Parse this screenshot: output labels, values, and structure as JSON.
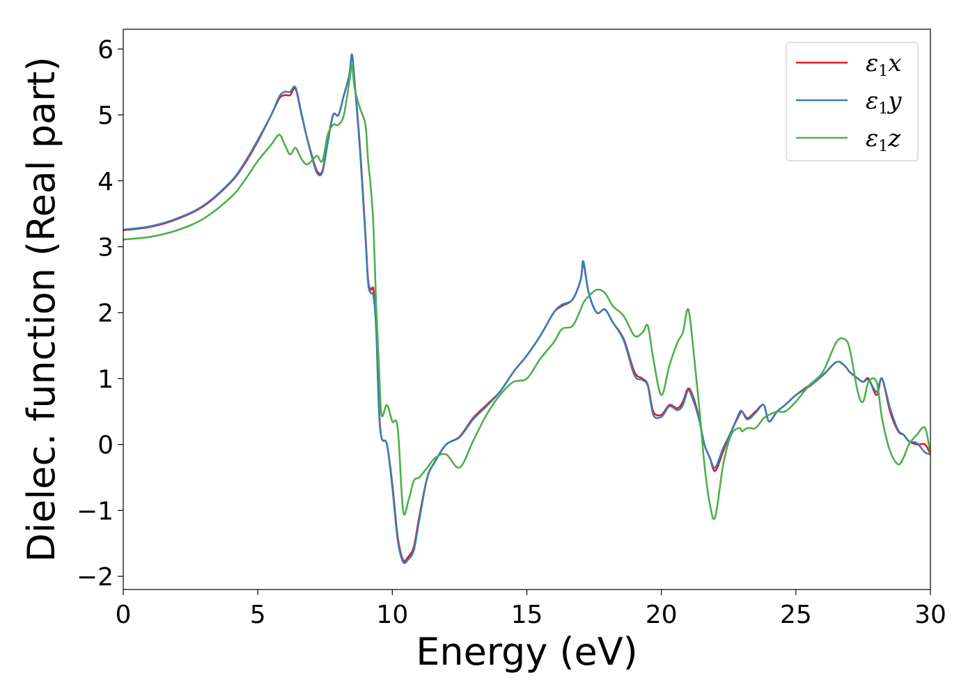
{
  "chart_data": {
    "type": "line",
    "title": "",
    "xlabel": "Energy (eV)",
    "ylabel": "Dielec. function (Real part)",
    "xlim": [
      0,
      30
    ],
    "ylim": [
      -2.2,
      6.3
    ],
    "xticks": [
      0,
      5,
      10,
      15,
      20,
      25,
      30
    ],
    "yticks": [
      -2,
      -1,
      0,
      1,
      2,
      3,
      4,
      5,
      6
    ],
    "grid": false,
    "legend_position": "top-right",
    "series": [
      {
        "name": "ε₁x",
        "legend_base": "ε",
        "legend_sub": "1",
        "legend_tail": "x",
        "color": "#e41a1c",
        "x": [
          0,
          1,
          2,
          3,
          4,
          4.5,
          5,
          5.5,
          5.8,
          6.0,
          6.2,
          6.4,
          6.6,
          6.8,
          7.0,
          7.2,
          7.4,
          7.6,
          7.8,
          8.0,
          8.2,
          8.4,
          8.5,
          8.6,
          8.8,
          9.0,
          9.1,
          9.2,
          9.3,
          9.4,
          9.5,
          9.6,
          9.8,
          10.0,
          10.2,
          10.4,
          10.6,
          10.8,
          11.0,
          11.3,
          11.6,
          12.0,
          12.5,
          13.0,
          13.5,
          14.0,
          14.5,
          15.0,
          15.5,
          16.0,
          16.3,
          16.7,
          17.0,
          17.1,
          17.3,
          17.6,
          17.9,
          18.2,
          18.6,
          19.0,
          19.3,
          19.5,
          19.7,
          20.0,
          20.3,
          20.6,
          20.8,
          21.0,
          21.2,
          21.4,
          21.6,
          21.8,
          22.0,
          22.3,
          22.6,
          22.9,
          23.0,
          23.2,
          23.5,
          23.8,
          24.0,
          24.3,
          24.6,
          25.0,
          25.5,
          26.0,
          26.5,
          26.8,
          27.0,
          27.3,
          27.5,
          27.7,
          28.0,
          28.2,
          28.5,
          28.8,
          29.0,
          29.2,
          29.5,
          29.8,
          30.0
        ],
        "values": [
          3.25,
          3.3,
          3.42,
          3.62,
          3.98,
          4.25,
          4.6,
          5.0,
          5.25,
          5.3,
          5.3,
          5.4,
          5.05,
          4.7,
          4.4,
          4.15,
          4.15,
          4.6,
          5.0,
          5.0,
          5.3,
          5.6,
          5.9,
          5.5,
          4.5,
          3.2,
          2.5,
          2.35,
          2.35,
          1.8,
          0.6,
          0.1,
          0.0,
          -0.6,
          -1.4,
          -1.75,
          -1.7,
          -1.55,
          -1.1,
          -0.5,
          -0.25,
          0.0,
          0.12,
          0.4,
          0.6,
          0.8,
          1.1,
          1.35,
          1.65,
          2.0,
          2.1,
          2.2,
          2.5,
          2.75,
          2.3,
          2.0,
          2.05,
          1.85,
          1.6,
          1.1,
          1.0,
          0.9,
          0.5,
          0.45,
          0.6,
          0.55,
          0.65,
          0.85,
          0.7,
          0.4,
          0.0,
          -0.2,
          -0.4,
          -0.1,
          0.2,
          0.45,
          0.5,
          0.4,
          0.5,
          0.6,
          0.35,
          0.5,
          0.6,
          0.75,
          0.9,
          1.05,
          1.25,
          1.2,
          1.1,
          1.0,
          0.95,
          1.0,
          0.75,
          1.0,
          0.5,
          0.2,
          0.15,
          0.05,
          0.0,
          0.0,
          -0.15
        ]
      },
      {
        "name": "ε₁y",
        "legend_base": "ε",
        "legend_sub": "1",
        "legend_tail": "y",
        "color": "#377eb8",
        "x": [
          0,
          1,
          2,
          3,
          4,
          4.5,
          5,
          5.5,
          5.8,
          6.0,
          6.2,
          6.4,
          6.6,
          6.8,
          7.0,
          7.2,
          7.4,
          7.6,
          7.8,
          8.0,
          8.2,
          8.4,
          8.5,
          8.6,
          8.8,
          9.0,
          9.1,
          9.2,
          9.3,
          9.4,
          9.5,
          9.6,
          9.8,
          10.0,
          10.2,
          10.4,
          10.6,
          10.8,
          11.0,
          11.3,
          11.6,
          12.0,
          12.5,
          13.0,
          13.5,
          14.0,
          14.5,
          15.0,
          15.5,
          16.0,
          16.3,
          16.7,
          17.0,
          17.1,
          17.3,
          17.6,
          17.9,
          18.2,
          18.6,
          19.0,
          19.3,
          19.5,
          19.7,
          20.0,
          20.3,
          20.6,
          20.8,
          21.0,
          21.2,
          21.4,
          21.6,
          21.8,
          22.0,
          22.3,
          22.6,
          22.9,
          23.0,
          23.2,
          23.5,
          23.8,
          24.0,
          24.3,
          24.6,
          25.0,
          25.5,
          26.0,
          26.5,
          26.8,
          27.0,
          27.3,
          27.5,
          27.7,
          28.0,
          28.2,
          28.5,
          28.8,
          29.0,
          29.2,
          29.5,
          29.8,
          30.0
        ],
        "values": [
          3.26,
          3.31,
          3.43,
          3.63,
          3.99,
          4.27,
          4.62,
          5.0,
          5.28,
          5.35,
          5.35,
          5.42,
          5.07,
          4.7,
          4.38,
          4.12,
          4.13,
          4.58,
          5.0,
          5.0,
          5.3,
          5.6,
          5.92,
          5.48,
          4.45,
          3.15,
          2.45,
          2.3,
          2.25,
          1.75,
          0.55,
          0.1,
          0.0,
          -0.65,
          -1.45,
          -1.78,
          -1.74,
          -1.6,
          -1.15,
          -0.5,
          -0.25,
          0.0,
          0.11,
          0.38,
          0.58,
          0.8,
          1.1,
          1.35,
          1.65,
          2.0,
          2.12,
          2.2,
          2.5,
          2.78,
          2.3,
          2.0,
          2.05,
          1.85,
          1.58,
          1.05,
          0.98,
          0.88,
          0.45,
          0.42,
          0.58,
          0.52,
          0.6,
          0.82,
          0.65,
          0.38,
          0.0,
          -0.2,
          -0.35,
          -0.05,
          0.2,
          0.48,
          0.5,
          0.38,
          0.48,
          0.6,
          0.35,
          0.5,
          0.6,
          0.75,
          0.88,
          1.05,
          1.25,
          1.2,
          1.1,
          1.0,
          0.95,
          0.98,
          0.8,
          1.0,
          0.55,
          0.22,
          0.15,
          0.05,
          0.02,
          -0.12,
          -0.15
        ]
      },
      {
        "name": "ε₁z",
        "legend_base": "ε",
        "legend_sub": "1",
        "legend_tail": "z",
        "color": "#4daf4a",
        "x": [
          0,
          1,
          2,
          3,
          4,
          4.5,
          5,
          5.5,
          5.8,
          6.0,
          6.2,
          6.4,
          6.6,
          6.8,
          7.0,
          7.2,
          7.4,
          7.6,
          7.8,
          8.0,
          8.2,
          8.4,
          8.5,
          8.6,
          8.8,
          9.0,
          9.1,
          9.2,
          9.3,
          9.4,
          9.5,
          9.6,
          9.8,
          10.0,
          10.2,
          10.4,
          10.6,
          10.8,
          11.0,
          11.3,
          11.6,
          12.0,
          12.5,
          13.0,
          13.5,
          14.0,
          14.5,
          15.0,
          15.5,
          16.0,
          16.3,
          16.7,
          17.0,
          17.1,
          17.3,
          17.6,
          17.9,
          18.2,
          18.6,
          19.0,
          19.3,
          19.5,
          19.7,
          20.0,
          20.3,
          20.6,
          20.8,
          21.0,
          21.2,
          21.4,
          21.6,
          21.8,
          22.0,
          22.3,
          22.6,
          22.9,
          23.0,
          23.2,
          23.5,
          23.8,
          24.0,
          24.3,
          24.6,
          25.0,
          25.5,
          26.0,
          26.5,
          26.8,
          27.0,
          27.3,
          27.5,
          27.7,
          28.0,
          28.2,
          28.5,
          28.8,
          29.0,
          29.2,
          29.5,
          29.8,
          30.0
        ],
        "values": [
          3.11,
          3.15,
          3.25,
          3.43,
          3.75,
          4.0,
          4.3,
          4.55,
          4.7,
          4.55,
          4.4,
          4.5,
          4.35,
          4.25,
          4.3,
          4.38,
          4.3,
          4.7,
          4.85,
          4.85,
          5.0,
          5.5,
          5.75,
          5.4,
          5.1,
          4.85,
          4.3,
          3.9,
          3.3,
          2.1,
          1.2,
          0.45,
          0.6,
          0.35,
          0.25,
          -1.0,
          -0.85,
          -0.55,
          -0.5,
          -0.35,
          -0.2,
          -0.15,
          -0.35,
          0.05,
          0.45,
          0.75,
          0.95,
          1.0,
          1.3,
          1.55,
          1.75,
          1.8,
          2.05,
          2.15,
          2.25,
          2.35,
          2.3,
          2.1,
          1.95,
          1.65,
          1.7,
          1.8,
          1.3,
          0.75,
          1.2,
          1.55,
          1.7,
          2.05,
          1.4,
          0.6,
          -0.3,
          -0.9,
          -1.1,
          -0.3,
          0.15,
          0.25,
          0.2,
          0.25,
          0.25,
          0.4,
          0.45,
          0.5,
          0.5,
          0.65,
          0.9,
          1.1,
          1.55,
          1.6,
          1.45,
          0.8,
          0.65,
          0.95,
          0.95,
          0.4,
          -0.1,
          -0.3,
          -0.2,
          0.0,
          0.15,
          0.25,
          -0.15
        ]
      }
    ]
  }
}
